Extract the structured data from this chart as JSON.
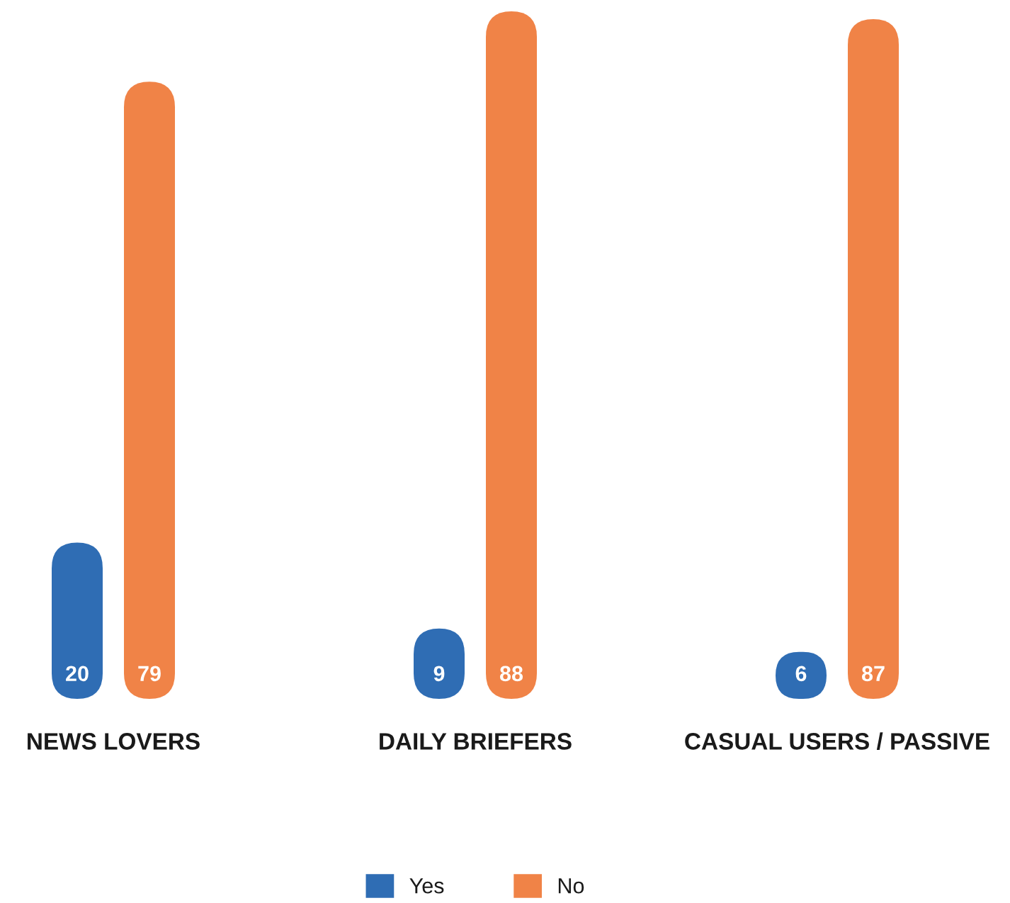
{
  "chart_data": {
    "type": "bar",
    "categories": [
      "NEWS LOVERS",
      "DAILY BRIEFERS",
      "CASUAL USERS / PASSIVE"
    ],
    "series": [
      {
        "name": "Yes",
        "color": "#2f6db4",
        "values": [
          20,
          9,
          6
        ]
      },
      {
        "name": "No",
        "color": "#f08347",
        "values": [
          79,
          88,
          87
        ]
      }
    ],
    "data_labels": true,
    "legend": "bottom",
    "tick_labels": "x"
  }
}
